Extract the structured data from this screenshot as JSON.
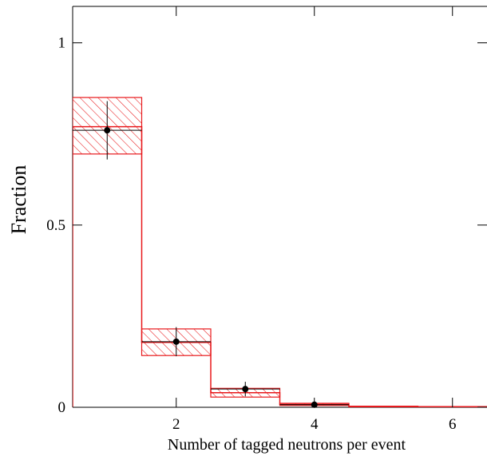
{
  "chart_data": {
    "type": "bar",
    "xlabel": "Number of tagged neutrons per event",
    "ylabel": "Fraction",
    "xlim": [
      0.5,
      6.5
    ],
    "ylim": [
      0,
      1.1
    ],
    "x_ticks": [
      2,
      4,
      6
    ],
    "x_tick_labels": [
      "2",
      "4",
      "6"
    ],
    "y_ticks": [
      0,
      0.5,
      1
    ],
    "y_tick_labels": [
      "0",
      "0.5",
      "1"
    ],
    "grid": false,
    "series": [
      {
        "kind": "histogram-with-uncertainty-band",
        "color": "#e8191c",
        "bins": [
          {
            "low": 0.5,
            "high": 1.5,
            "value": 0.77,
            "band_low": 0.695,
            "band_high": 0.85
          },
          {
            "low": 1.5,
            "high": 2.5,
            "value": 0.178,
            "band_low": 0.142,
            "band_high": 0.215
          },
          {
            "low": 2.5,
            "high": 3.5,
            "value": 0.04,
            "band_low": 0.028,
            "band_high": 0.052
          },
          {
            "low": 3.5,
            "high": 4.5,
            "value": 0.008,
            "band_low": 0.005,
            "band_high": 0.011
          },
          {
            "low": 4.5,
            "high": 5.5,
            "value": 0.002,
            "band_low": 0.001,
            "band_high": 0.003
          },
          {
            "low": 5.5,
            "high": 6.5,
            "value": 0.001,
            "band_low": 0.0,
            "band_high": 0.002
          }
        ]
      },
      {
        "kind": "data-points",
        "color": "#000000",
        "points": [
          {
            "x": 1,
            "y": 0.76,
            "err": 0.08,
            "x_err": 0.5
          },
          {
            "x": 2,
            "y": 0.18,
            "err": 0.04,
            "x_err": 0.5
          },
          {
            "x": 3,
            "y": 0.05,
            "err": 0.02,
            "x_err": 0.5
          },
          {
            "x": 4,
            "y": 0.007,
            "err": 0.005,
            "x_err": 0.5
          }
        ]
      }
    ]
  }
}
